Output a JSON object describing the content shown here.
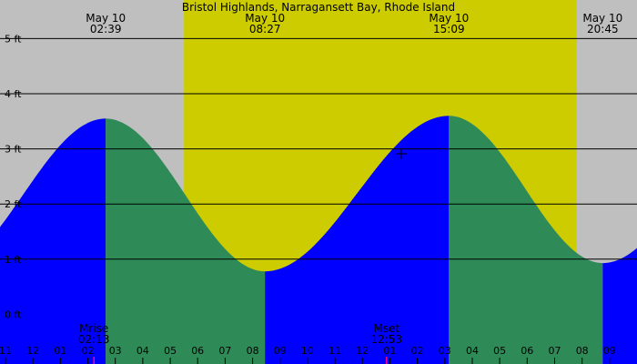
{
  "chart_data": {
    "type": "area",
    "title": "Bristol Highlands, Narragansett Bay, Rhode Island",
    "x_unit": "hours",
    "y_unit": "ft",
    "xlim": [
      -1.2,
      22.0
    ],
    "ylim": [
      -0.9,
      5.7
    ],
    "yticks": [
      {
        "value": 5,
        "label": "5 ft"
      },
      {
        "value": 4,
        "label": "4 ft"
      },
      {
        "value": 3,
        "label": "3 ft"
      },
      {
        "value": 2,
        "label": "2 ft"
      },
      {
        "value": 1,
        "label": "1 ft"
      },
      {
        "value": 0,
        "label": "0 ft"
      },
      {
        "value": -1,
        "label": "-1 ft"
      }
    ],
    "xticks": [
      {
        "value": -1,
        "label": "11"
      },
      {
        "value": 0,
        "label": "12"
      },
      {
        "value": 1,
        "label": "01"
      },
      {
        "value": 2,
        "label": "02"
      },
      {
        "value": 3,
        "label": "03"
      },
      {
        "value": 4,
        "label": "04"
      },
      {
        "value": 5,
        "label": "05"
      },
      {
        "value": 6,
        "label": "06"
      },
      {
        "value": 7,
        "label": "07"
      },
      {
        "value": 8,
        "label": "08"
      },
      {
        "value": 9,
        "label": "09"
      },
      {
        "value": 10,
        "label": "10"
      },
      {
        "value": 11,
        "label": "11"
      },
      {
        "value": 12,
        "label": "12"
      },
      {
        "value": 13,
        "label": "01"
      },
      {
        "value": 14,
        "label": "02"
      },
      {
        "value": 15,
        "label": "03"
      },
      {
        "value": 16,
        "label": "04"
      },
      {
        "value": 17,
        "label": "05"
      },
      {
        "value": 18,
        "label": "06"
      },
      {
        "value": 19,
        "label": "07"
      },
      {
        "value": 20,
        "label": "08"
      },
      {
        "value": 21,
        "label": "09"
      }
    ],
    "extremes": [
      {
        "date": "May 10",
        "time": "02:39",
        "hour": 2.65,
        "height": 3.55,
        "kind": "high"
      },
      {
        "date": "May 10",
        "time": "08:27",
        "hour": 8.45,
        "height": 0.78,
        "kind": "low"
      },
      {
        "date": "May 10",
        "time": "15:09",
        "hour": 15.15,
        "height": 3.6,
        "kind": "high"
      },
      {
        "date": "May 10",
        "time": "20:45",
        "hour": 20.75,
        "height": 0.93,
        "kind": "low"
      }
    ],
    "daylight": {
      "start_hour": 5.5,
      "end_hour": 19.8
    },
    "moon_events": [
      {
        "label": "Mrise",
        "time": "02:13",
        "hour": 2.22
      },
      {
        "label": "Mset",
        "time": "12:53",
        "hour": 12.88
      }
    ],
    "colors": {
      "background": "#bfbfbf",
      "daylight": "#cccc00",
      "rising": "#0000ff",
      "falling": "#2e8b57",
      "gridline": "#000000",
      "moon_marker": "#ff0080"
    }
  }
}
